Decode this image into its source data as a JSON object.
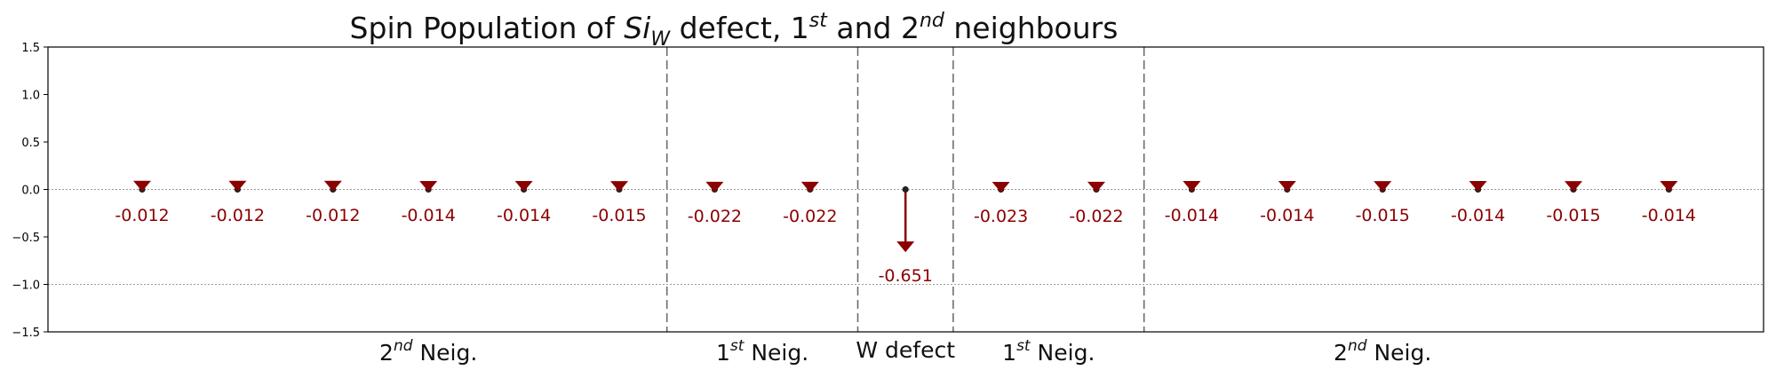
{
  "chart_data": {
    "type": "stem",
    "title": {
      "prefix": "Spin Population of ",
      "si_base": "Si",
      "si_sub": "W",
      "middle": " defect, 1",
      "sup1": "st",
      "and": " and 2",
      "sup2": "nd",
      "suffix": " neighbours"
    },
    "ylim": [
      -1.5,
      1.5
    ],
    "yticks": [
      1.5,
      1.0,
      0.5,
      0.0,
      -0.5,
      -1.0,
      -1.5
    ],
    "ytick_labels": [
      "1.5",
      "1.0",
      "0.5",
      "0.0",
      "−0.5",
      "−1.0",
      "−1.5"
    ],
    "x": [
      0,
      1,
      2,
      3,
      4,
      5,
      6,
      7,
      8,
      9,
      10,
      11,
      12,
      13,
      14,
      15,
      16
    ],
    "values": [
      -0.012,
      -0.012,
      -0.012,
      -0.014,
      -0.014,
      -0.015,
      -0.022,
      -0.022,
      -0.651,
      -0.023,
      -0.022,
      -0.014,
      -0.014,
      -0.015,
      -0.014,
      -0.015,
      -0.014
    ],
    "value_labels": [
      "-0.012",
      "-0.012",
      "-0.012",
      "-0.014",
      "-0.014",
      "-0.015",
      "-0.022",
      "-0.022",
      "-0.651",
      "-0.023",
      "-0.022",
      "-0.014",
      "-0.014",
      "-0.015",
      "-0.014",
      "-0.015",
      "-0.014"
    ],
    "reference_lines_y": [
      0.0,
      -1.0
    ],
    "dividers_x": [
      5.5,
      7.5,
      8.5,
      10.5
    ],
    "groups": [
      {
        "center_x": 3.0,
        "base": "2",
        "sup": "nd",
        "text": " Neig."
      },
      {
        "center_x": 6.5,
        "base": "1",
        "sup": "st",
        "text": " Neig."
      },
      {
        "center_x": 8.0,
        "base": "",
        "sup": "",
        "text": "W defect"
      },
      {
        "center_x": 9.5,
        "base": "1",
        "sup": "st",
        "text": " Neig."
      },
      {
        "center_x": 13.0,
        "base": "2",
        "sup": "nd",
        "text": " Neig."
      }
    ],
    "colors": {
      "stem": "#8b0000",
      "label": "#8b0000",
      "marker_dot": "#222222",
      "divider": "#666666",
      "refline": "#999999"
    }
  }
}
